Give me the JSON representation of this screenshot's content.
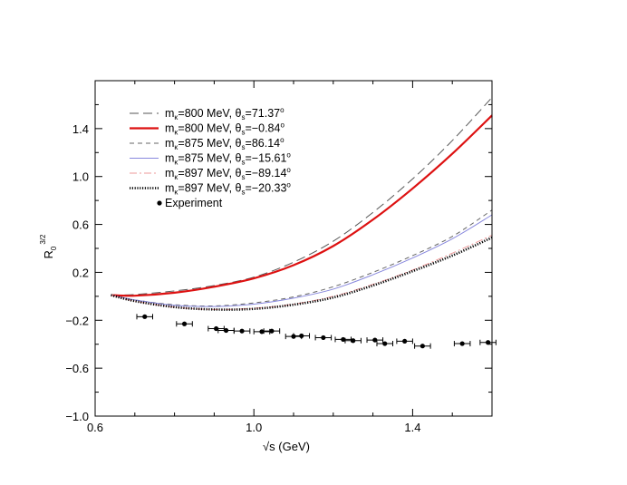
{
  "chart_data": {
    "type": "line",
    "xlabel": "√s (GeV)",
    "ylabel": {
      "base": "R",
      "sub": "0",
      "sup": "3/2"
    },
    "xlim": [
      0.6,
      1.6
    ],
    "ylim": [
      -1.0,
      1.8
    ],
    "x_ticks": [
      0.6,
      1.0,
      1.4
    ],
    "x_ticks_minor": [
      0.7,
      0.8,
      0.9,
      1.1,
      1.2,
      1.3,
      1.5
    ],
    "y_ticks": [
      -1.0,
      -0.6,
      -0.2,
      0.2,
      0.6,
      1.0,
      1.4
    ],
    "y_ticks_minor": [
      -0.8,
      -0.4,
      0.0,
      0.4,
      0.8,
      1.2,
      1.6
    ],
    "x_tick_labels": [
      "0.6",
      "1.0",
      "1.4"
    ],
    "y_tick_labels": [
      "−1.0",
      "−0.6",
      "−0.2",
      "0.2",
      "0.6",
      "1.0",
      "1.4"
    ],
    "grid": false,
    "legend_position": "top-left",
    "series": [
      {
        "name": {
          "m": "m",
          "sub": "κ",
          "rest": "=800 MeV, θ",
          "sub2": "s",
          "val": "=71.37",
          "deg": "o"
        },
        "color": "#555555",
        "dash": "long-dash",
        "width": 1,
        "x": [
          0.64,
          0.7,
          0.8,
          0.9,
          1.0,
          1.1,
          1.2,
          1.3,
          1.4,
          1.5,
          1.6
        ],
        "y": [
          0.01,
          0.015,
          0.045,
          0.09,
          0.16,
          0.285,
          0.46,
          0.7,
          0.98,
          1.3,
          1.66
        ]
      },
      {
        "name": {
          "m": "m",
          "sub": "κ",
          "rest": "=800 MeV, θ",
          "sub2": "s",
          "val": "=−0.84",
          "deg": "o"
        },
        "color": "#dd1111",
        "dash": "solid",
        "width": 2.2,
        "x": [
          0.64,
          0.7,
          0.8,
          0.9,
          1.0,
          1.1,
          1.2,
          1.3,
          1.4,
          1.5,
          1.6
        ],
        "y": [
          0.01,
          0.005,
          0.03,
          0.08,
          0.15,
          0.26,
          0.42,
          0.64,
          0.9,
          1.19,
          1.51
        ]
      },
      {
        "name": {
          "m": "m",
          "sub": "κ",
          "rest": "=875 MeV, θ",
          "sub2": "s",
          "val": "=86.14",
          "deg": "o"
        },
        "color": "#666666",
        "dash": "short-dash",
        "width": 1,
        "x": [
          0.64,
          0.7,
          0.8,
          0.9,
          1.0,
          1.1,
          1.2,
          1.3,
          1.4,
          1.5,
          1.6
        ],
        "y": [
          0.01,
          -0.03,
          -0.07,
          -0.08,
          -0.055,
          -0.005,
          0.08,
          0.2,
          0.34,
          0.5,
          0.72
        ]
      },
      {
        "name": {
          "m": "m",
          "sub": "κ",
          "rest": "=875 MeV, θ",
          "sub2": "s",
          "val": "=−15.61",
          "deg": "o"
        },
        "color": "#8888dd",
        "dash": "solid",
        "width": 1,
        "x": [
          0.64,
          0.7,
          0.8,
          0.9,
          1.0,
          1.1,
          1.2,
          1.3,
          1.4,
          1.5,
          1.6
        ],
        "y": [
          0.01,
          -0.03,
          -0.075,
          -0.085,
          -0.065,
          -0.015,
          0.06,
          0.18,
          0.32,
          0.48,
          0.68
        ]
      },
      {
        "name": {
          "m": "m",
          "sub": "κ",
          "rest": "=897 MeV, θ",
          "sub2": "s",
          "val": "=−89.14",
          "deg": "o"
        },
        "color": "#ee9999",
        "dash": "dash-dot",
        "width": 1,
        "x": [
          0.64,
          0.7,
          0.8,
          0.9,
          1.0,
          1.1,
          1.2,
          1.3,
          1.4,
          1.5,
          1.6
        ],
        "y": [
          0.01,
          -0.04,
          -0.09,
          -0.11,
          -0.1,
          -0.065,
          0.0,
          0.1,
          0.22,
          0.36,
          0.51
        ]
      },
      {
        "name": {
          "m": "m",
          "sub": "κ",
          "rest": "=897 MeV, θ",
          "sub2": "s",
          "val": "=−20.33",
          "deg": "o"
        },
        "color": "#000000",
        "dash": "dotted",
        "width": 2.6,
        "x": [
          0.64,
          0.7,
          0.8,
          0.9,
          1.0,
          1.1,
          1.2,
          1.3,
          1.4,
          1.5,
          1.6
        ],
        "y": [
          0.01,
          -0.04,
          -0.09,
          -0.11,
          -0.105,
          -0.07,
          -0.01,
          0.09,
          0.21,
          0.34,
          0.49
        ]
      }
    ],
    "experiment": {
      "name": "Experiment",
      "color": "#000000",
      "points": [
        {
          "x": 0.725,
          "y": -0.17,
          "xerr": 0.02
        },
        {
          "x": 0.825,
          "y": -0.23,
          "xerr": 0.02
        },
        {
          "x": 0.905,
          "y": -0.27,
          "xerr": 0.02
        },
        {
          "x": 0.93,
          "y": -0.285,
          "xerr": 0.02
        },
        {
          "x": 0.97,
          "y": -0.29,
          "xerr": 0.02
        },
        {
          "x": 1.02,
          "y": -0.295,
          "xerr": 0.02
        },
        {
          "x": 1.045,
          "y": -0.29,
          "xerr": 0.02
        },
        {
          "x": 1.1,
          "y": -0.335,
          "xerr": 0.02
        },
        {
          "x": 1.12,
          "y": -0.33,
          "xerr": 0.02
        },
        {
          "x": 1.175,
          "y": -0.345,
          "xerr": 0.02
        },
        {
          "x": 1.225,
          "y": -0.36,
          "xerr": 0.02
        },
        {
          "x": 1.25,
          "y": -0.37,
          "xerr": 0.02
        },
        {
          "x": 1.305,
          "y": -0.365,
          "xerr": 0.02
        },
        {
          "x": 1.33,
          "y": -0.395,
          "xerr": 0.02
        },
        {
          "x": 1.38,
          "y": -0.375,
          "xerr": 0.02
        },
        {
          "x": 1.425,
          "y": -0.415,
          "xerr": 0.02
        },
        {
          "x": 1.525,
          "y": -0.395,
          "xerr": 0.02
        },
        {
          "x": 1.59,
          "y": -0.385,
          "xerr": 0.02
        }
      ]
    }
  }
}
